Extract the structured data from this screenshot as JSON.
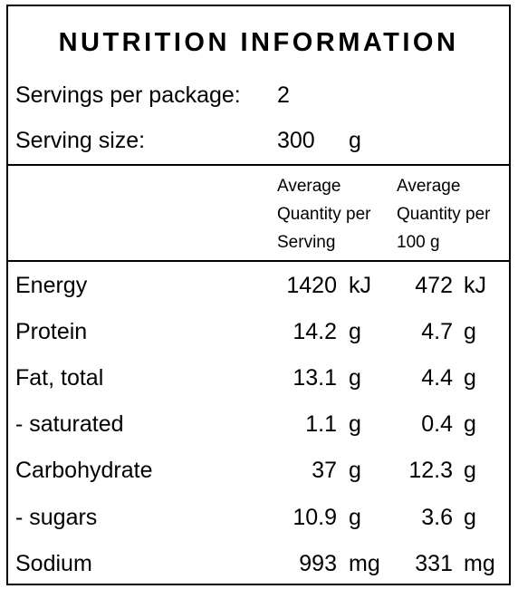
{
  "title": "NUTRITION INFORMATION",
  "servings": {
    "label": "Servings per package:",
    "value": "2"
  },
  "serving_size": {
    "label": "Serving size:",
    "value": "300",
    "unit": "g"
  },
  "columns": {
    "per_serving": [
      "Average",
      "Quantity per",
      "Serving"
    ],
    "per_100g": [
      "Average",
      "Quantity per",
      "100 g"
    ]
  },
  "rows": [
    {
      "name": "Energy",
      "serving": "1420",
      "serving_unit": "kJ",
      "per100": "472",
      "per100_unit": "kJ"
    },
    {
      "name": "Protein",
      "serving": "14.2",
      "serving_unit": "g",
      "per100": "4.7",
      "per100_unit": "g"
    },
    {
      "name": "Fat, total",
      "serving": "13.1",
      "serving_unit": "g",
      "per100": "4.4",
      "per100_unit": "g"
    },
    {
      "name": "- saturated",
      "serving": "1.1",
      "serving_unit": "g",
      "per100": "0.4",
      "per100_unit": "g"
    },
    {
      "name": "Carbohydrate",
      "serving": "37",
      "serving_unit": "g",
      "per100": "12.3",
      "per100_unit": "g"
    },
    {
      "name": "- sugars",
      "serving": "10.9",
      "serving_unit": "g",
      "per100": "3.6",
      "per100_unit": "g"
    },
    {
      "name": "Sodium",
      "serving": "993",
      "serving_unit": "mg",
      "per100": "331",
      "per100_unit": "mg"
    }
  ]
}
